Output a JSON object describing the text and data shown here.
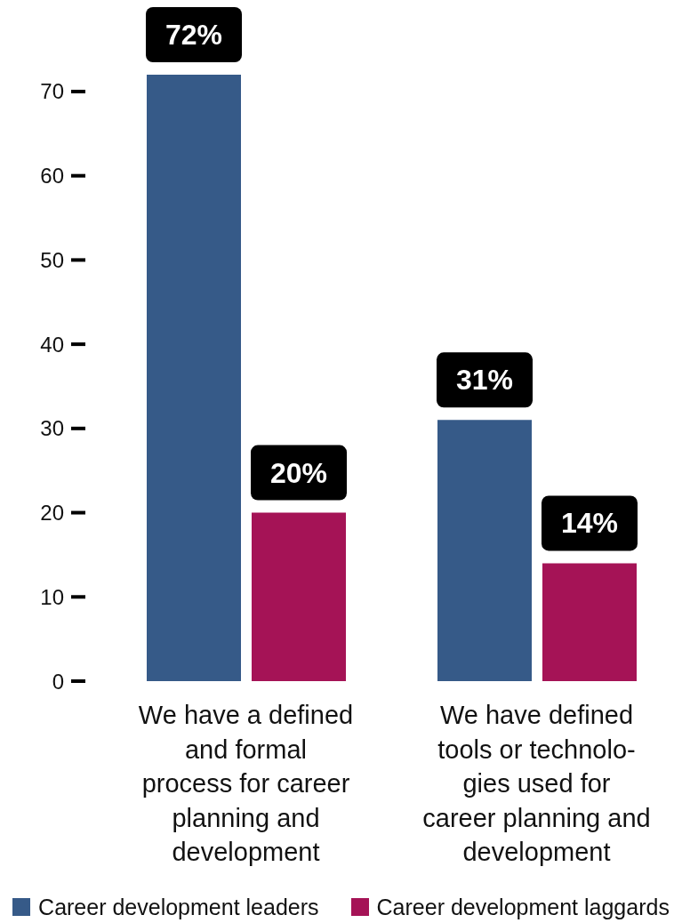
{
  "chart_data": {
    "type": "bar",
    "categories": [
      "We have a defined\nand formal\nprocess for career\nplanning and\ndevelopment",
      "We have defined\ntools or technolo-\ngies used for\ncareer planning and\ndevelopment"
    ],
    "series": [
      {
        "name": "Career development leaders",
        "color": "#365a88",
        "values": [
          72,
          31
        ],
        "value_labels": [
          "72%",
          "31%"
        ]
      },
      {
        "name": "Career development laggards",
        "color": "#a51356",
        "values": [
          20,
          14
        ],
        "value_labels": [
          "20%",
          "14%"
        ]
      }
    ],
    "ylim": [
      0,
      72
    ],
    "yticks": [
      0,
      10,
      20,
      30,
      40,
      50,
      60,
      70
    ],
    "legend": "bottom"
  }
}
